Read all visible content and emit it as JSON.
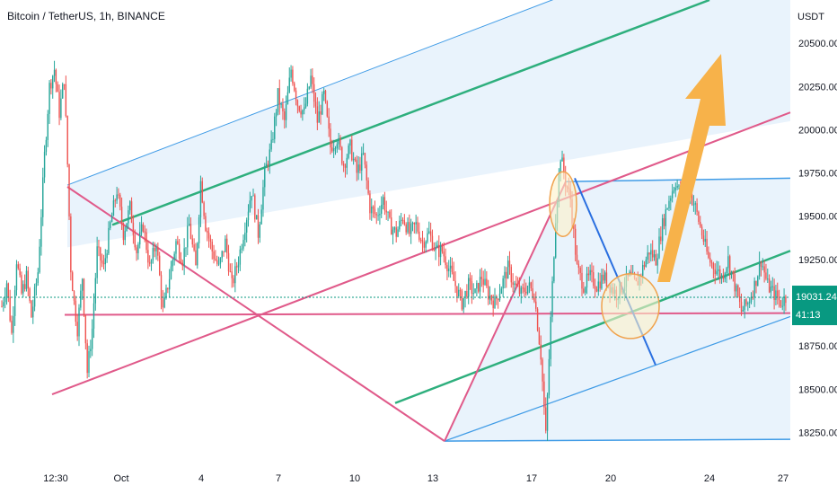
{
  "header": {
    "title": "Bitcoin / TetherUS, 1h, BINANCE",
    "currency": "USDT"
  },
  "price_tag": {
    "price": "19031.24",
    "countdown": "41:13",
    "color": "#089981"
  },
  "colors": {
    "up": "#26a69a",
    "down": "#ef5350",
    "pink": "#e05a8a",
    "blue": "#3f9be6",
    "green": "#2eaf7d",
    "fill": "#e3f0fb",
    "arrow": "#f7b24a",
    "circle": "#f0a24c",
    "circle_fill": "#fdf1c8",
    "axis_text": "#131722"
  },
  "chart_data": {
    "type": "candlestick",
    "title": "Bitcoin / TetherUS, 1h, BINANCE",
    "y_unit": "USDT",
    "ylim": [
      18050,
      20750
    ],
    "y_ticks": [
      "20500.00",
      "20250.00",
      "20000.00",
      "19750.00",
      "19500.00",
      "19250.00",
      "19000.00",
      "18750.00",
      "18500.00",
      "18250.00"
    ],
    "x_ticks": [
      "12:30",
      "Oct",
      "4",
      "7",
      "10",
      "13",
      "17",
      "20",
      "24",
      "27"
    ],
    "last_price": 19031.24,
    "candle_path": [
      [
        0,
        18980
      ],
      [
        3,
        19120
      ],
      [
        6,
        18820
      ],
      [
        9,
        19250
      ],
      [
        12,
        19050
      ],
      [
        15,
        19150
      ],
      [
        18,
        18920
      ],
      [
        22,
        19180
      ],
      [
        26,
        19850
      ],
      [
        29,
        20250
      ],
      [
        32,
        20350
      ],
      [
        35,
        20100
      ],
      [
        38,
        20300
      ],
      [
        40,
        19800
      ],
      [
        42,
        19200
      ],
      [
        44,
        19000
      ],
      [
        46,
        18850
      ],
      [
        49,
        19150
      ],
      [
        52,
        18600
      ],
      [
        55,
        18850
      ],
      [
        58,
        19300
      ],
      [
        62,
        19200
      ],
      [
        66,
        19450
      ],
      [
        70,
        19650
      ],
      [
        74,
        19400
      ],
      [
        78,
        19550
      ],
      [
        82,
        19300
      ],
      [
        86,
        19450
      ],
      [
        90,
        19200
      ],
      [
        94,
        19350
      ],
      [
        98,
        18950
      ],
      [
        102,
        19150
      ],
      [
        106,
        19350
      ],
      [
        110,
        19250
      ],
      [
        114,
        19450
      ],
      [
        118,
        19200
      ],
      [
        121,
        19700
      ],
      [
        124,
        19450
      ],
      [
        128,
        19300
      ],
      [
        132,
        19200
      ],
      [
        136,
        19350
      ],
      [
        140,
        19100
      ],
      [
        144,
        19250
      ],
      [
        148,
        19450
      ],
      [
        152,
        19650
      ],
      [
        156,
        19400
      ],
      [
        160,
        19750
      ],
      [
        164,
        19900
      ],
      [
        168,
        20200
      ],
      [
        172,
        20050
      ],
      [
        176,
        20350
      ],
      [
        180,
        20150
      ],
      [
        184,
        20100
      ],
      [
        188,
        20300
      ],
      [
        192,
        20050
      ],
      [
        196,
        20200
      ],
      [
        200,
        19900
      ],
      [
        204,
        19950
      ],
      [
        208,
        19800
      ],
      [
        212,
        19900
      ],
      [
        216,
        19750
      ],
      [
        220,
        19850
      ],
      [
        224,
        19550
      ],
      [
        228,
        19500
      ],
      [
        232,
        19600
      ],
      [
        236,
        19450
      ],
      [
        240,
        19400
      ],
      [
        244,
        19500
      ],
      [
        248,
        19400
      ],
      [
        252,
        19450
      ],
      [
        256,
        19350
      ],
      [
        260,
        19400
      ],
      [
        264,
        19300
      ],
      [
        268,
        19300
      ],
      [
        272,
        19200
      ],
      [
        276,
        19100
      ],
      [
        280,
        19000
      ],
      [
        284,
        19100
      ],
      [
        288,
        19050
      ],
      [
        292,
        19150
      ],
      [
        296,
        19050
      ],
      [
        300,
        19000
      ],
      [
        304,
        19100
      ],
      [
        308,
        19200
      ],
      [
        312,
        19100
      ],
      [
        316,
        19050
      ],
      [
        320,
        19100
      ],
      [
        324,
        19050
      ],
      [
        328,
        18700
      ],
      [
        331,
        18230
      ],
      [
        334,
        18900
      ],
      [
        337,
        19500
      ],
      [
        340,
        19850
      ],
      [
        343,
        19700
      ],
      [
        346,
        19600
      ],
      [
        350,
        19200
      ],
      [
        354,
        19100
      ],
      [
        358,
        19150
      ],
      [
        362,
        19100
      ],
      [
        366,
        19150
      ],
      [
        370,
        19100
      ],
      [
        374,
        19050
      ],
      [
        378,
        19100
      ],
      [
        382,
        19150
      ],
      [
        386,
        19100
      ],
      [
        390,
        19200
      ],
      [
        394,
        19300
      ],
      [
        398,
        19250
      ],
      [
        402,
        19450
      ],
      [
        406,
        19600
      ],
      [
        410,
        19700
      ],
      [
        414,
        19600
      ],
      [
        418,
        19650
      ],
      [
        422,
        19550
      ],
      [
        426,
        19400
      ],
      [
        430,
        19250
      ],
      [
        434,
        19200
      ],
      [
        438,
        19150
      ],
      [
        442,
        19250
      ],
      [
        446,
        19100
      ],
      [
        450,
        18950
      ],
      [
        454,
        19000
      ],
      [
        458,
        19100
      ],
      [
        462,
        19250
      ],
      [
        466,
        19100
      ],
      [
        470,
        19050
      ],
      [
        474,
        19000
      ],
      [
        477,
        19031
      ]
    ],
    "drawings": {
      "channel_upper": {
        "top": [
          [
            75,
            19680
          ],
          [
            640,
            20800
          ]
        ],
        "mid": [
          [
            125,
            19450
          ],
          [
            790,
            20750
          ]
        ]
      },
      "channel_lower": {
        "top": [
          [
            630,
            19700
          ],
          [
            880,
            19720
          ]
        ],
        "mid": [
          [
            440,
            18420
          ],
          [
            880,
            19300
          ]
        ],
        "bottom": [
          [
            495,
            18200
          ],
          [
            880,
            18210
          ]
        ],
        "slope_upper": [
          [
            495,
            18200
          ],
          [
            880,
            18920
          ]
        ]
      },
      "pink_lines": [
        [
          [
            58,
            18470
          ],
          [
            880,
            20100
          ]
        ],
        [
          [
            75,
            19670
          ],
          [
            495,
            18200
          ]
        ],
        [
          [
            495,
            18200
          ],
          [
            630,
            19700
          ]
        ],
        [
          [
            72,
            18930
          ],
          [
            880,
            18940
          ]
        ]
      ],
      "blue_diag": [
        [
          640,
          19720
        ],
        [
          730,
          18640
        ]
      ]
    }
  }
}
